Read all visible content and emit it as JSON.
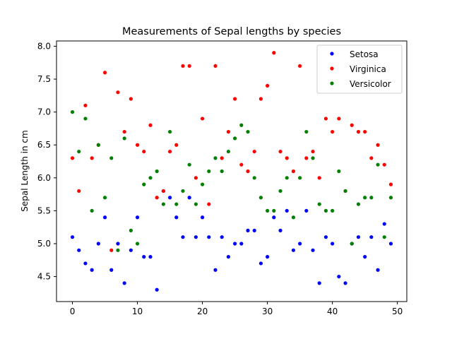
{
  "chart_data": {
    "type": "scatter",
    "title": "Measurements of Sepal lengths by species",
    "xlabel": "",
    "ylabel": "Sepal Length in cm",
    "xlim": [
      -2.45,
      51.45
    ],
    "ylim": [
      4.12,
      8.08
    ],
    "x_ticks": [
      0,
      10,
      20,
      30,
      40,
      50
    ],
    "y_ticks": [
      4.5,
      5.0,
      5.5,
      6.0,
      6.5,
      7.0,
      7.5,
      8.0
    ],
    "x_tick_labels": [
      "0",
      "10",
      "20",
      "30",
      "40",
      "50"
    ],
    "y_tick_labels": [
      "4.5",
      "5.0",
      "5.5",
      "6.0",
      "6.5",
      "7.0",
      "7.5",
      "8.0"
    ],
    "grid": false,
    "legend_position": "top-right",
    "series": [
      {
        "name": "Setosa",
        "color": "#0000ff",
        "values": [
          5.1,
          4.9,
          4.7,
          4.6,
          5.0,
          5.4,
          4.6,
          5.0,
          4.4,
          4.9,
          5.4,
          4.8,
          4.8,
          4.3,
          5.8,
          5.7,
          5.4,
          5.1,
          5.7,
          5.1,
          5.4,
          5.1,
          4.6,
          5.1,
          4.8,
          5.0,
          5.0,
          5.2,
          5.2,
          4.7,
          4.8,
          5.4,
          5.2,
          5.5,
          4.9,
          5.0,
          5.5,
          4.9,
          4.4,
          5.1,
          5.0,
          4.5,
          4.4,
          5.0,
          5.1,
          4.8,
          5.1,
          4.6,
          5.3,
          5.0
        ]
      },
      {
        "name": "Virginica",
        "color": "#ff0000",
        "values": [
          6.3,
          5.8,
          7.1,
          6.3,
          6.5,
          7.6,
          4.9,
          7.3,
          6.7,
          7.2,
          6.5,
          6.4,
          6.8,
          5.7,
          5.8,
          6.4,
          6.5,
          7.7,
          7.7,
          6.0,
          6.9,
          5.6,
          7.7,
          6.3,
          6.7,
          7.2,
          6.2,
          6.1,
          6.4,
          7.2,
          7.4,
          7.9,
          6.4,
          6.3,
          6.1,
          7.7,
          6.3,
          6.4,
          6.0,
          6.9,
          6.7,
          6.9,
          5.8,
          6.8,
          6.7,
          6.7,
          6.3,
          6.5,
          6.2,
          5.9
        ]
      },
      {
        "name": "Versicolor",
        "color": "#008000",
        "values": [
          7.0,
          6.4,
          6.9,
          5.5,
          6.5,
          5.7,
          6.3,
          4.9,
          6.6,
          5.2,
          5.0,
          5.9,
          6.0,
          6.1,
          5.6,
          6.7,
          5.6,
          5.8,
          6.2,
          5.6,
          5.9,
          6.1,
          6.3,
          6.1,
          6.4,
          6.6,
          6.8,
          6.7,
          6.0,
          5.7,
          5.5,
          5.5,
          5.8,
          6.0,
          5.4,
          6.0,
          6.7,
          6.3,
          5.6,
          5.5,
          5.5,
          6.1,
          5.8,
          5.0,
          5.6,
          5.7,
          5.7,
          6.2,
          5.1,
          5.7
        ]
      }
    ]
  }
}
